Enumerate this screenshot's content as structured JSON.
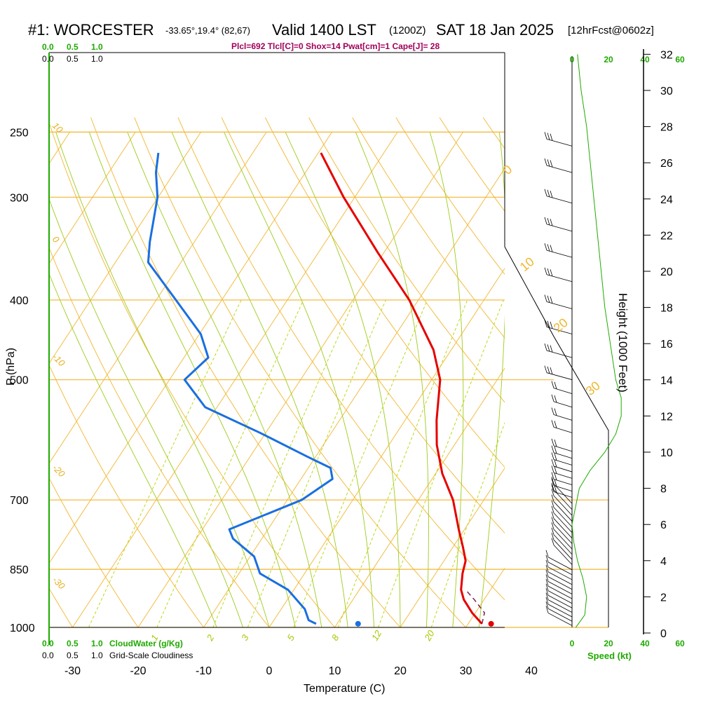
{
  "header": {
    "station": "#1: WORCESTER",
    "coords": "-33.65°,19.4° (82,67)",
    "valid": "Valid 1400 LST",
    "zulu": "(1200Z)",
    "date": "SAT 18 Jan 2025",
    "forecast": "[12hrFcst@0602z]"
  },
  "indices": "Plcl=692 Tlcl[C]=0 Shox=14 Pwat[cm]=1 Cape[J]= 28",
  "scales": {
    "cloudwater_ticks": [
      "0.0",
      "0.5",
      "1.0"
    ],
    "cloudiness_ticks": [
      "0.0",
      "0.5",
      "1.0"
    ],
    "cloudwater_label": "CloudWater (g/Kg)",
    "cloudiness_label": "Grid-Scale Cloudiness",
    "speed_ticks": [
      "0",
      "20",
      "40",
      "60"
    ],
    "speed_label": "Speed (kt)"
  },
  "colors": {
    "temperature": "#e60000",
    "dewpoint": "#1a6fe0",
    "isotherm": "#f2b630",
    "dry_adiabat": "#f2b630",
    "moist_adiabat": "#9ccc1a",
    "mixing_ratio": "#b8d400",
    "parcel": "#7a1f55",
    "wind_speed": "#1faa00"
  },
  "chart_data": {
    "type": "line",
    "subtype": "skew-t log-p sounding",
    "xlabel": "Temperature (C)",
    "ylabel": "P (hPa)",
    "y2label": "Height (1000 Feet)",
    "x_ticks": [
      -30,
      -20,
      -10,
      0,
      10,
      20,
      30,
      40
    ],
    "pressure_ticks": [
      250,
      300,
      400,
      500,
      700,
      850,
      1000
    ],
    "height_ticks": [
      0,
      2,
      4,
      6,
      8,
      10,
      12,
      14,
      16,
      18,
      20,
      22,
      24,
      26,
      28,
      30,
      32
    ],
    "mixing_ratio_labels": [
      "1",
      "2",
      "3",
      "5",
      "8",
      "12",
      "20"
    ],
    "dry_adiabat_labels": [
      "10",
      "0",
      "-10",
      "-20",
      "-30"
    ],
    "moist_adiabat_labels": [
      "0",
      "10",
      "20",
      "30"
    ],
    "temperature": [
      {
        "p": 990,
        "t": 32.1
      },
      {
        "p": 960,
        "t": 29.5
      },
      {
        "p": 925,
        "t": 26.9
      },
      {
        "p": 900,
        "t": 25.5
      },
      {
        "p": 860,
        "t": 24.1
      },
      {
        "p": 830,
        "t": 23.3
      },
      {
        "p": 800,
        "t": 21.6
      },
      {
        "p": 760,
        "t": 19.1
      },
      {
        "p": 700,
        "t": 15.3
      },
      {
        "p": 650,
        "t": 11.0
      },
      {
        "p": 600,
        "t": 7.3
      },
      {
        "p": 560,
        "t": 4.8
      },
      {
        "p": 500,
        "t": 1.3
      },
      {
        "p": 460,
        "t": -2.7
      },
      {
        "p": 400,
        "t": -11.4
      },
      {
        "p": 350,
        "t": -21.0
      },
      {
        "p": 300,
        "t": -31.7
      },
      {
        "p": 265,
        "t": -39.6
      }
    ],
    "dewpoint": [
      {
        "p": 990,
        "t": 6.8
      },
      {
        "p": 980,
        "t": 5.3
      },
      {
        "p": 950,
        "t": 3.6
      },
      {
        "p": 900,
        "t": -0.9
      },
      {
        "p": 860,
        "t": -6.8
      },
      {
        "p": 820,
        "t": -9.4
      },
      {
        "p": 780,
        "t": -14.4
      },
      {
        "p": 760,
        "t": -15.9
      },
      {
        "p": 700,
        "t": -7.8
      },
      {
        "p": 660,
        "t": -5.2
      },
      {
        "p": 640,
        "t": -6.6
      },
      {
        "p": 620,
        "t": -11.3
      },
      {
        "p": 580,
        "t": -20.9
      },
      {
        "p": 540,
        "t": -31.8
      },
      {
        "p": 500,
        "t": -37.7
      },
      {
        "p": 470,
        "t": -36.3
      },
      {
        "p": 440,
        "t": -39.8
      },
      {
        "p": 400,
        "t": -47.0
      },
      {
        "p": 360,
        "t": -55.0
      },
      {
        "p": 340,
        "t": -56.8
      },
      {
        "p": 300,
        "t": -60.1
      },
      {
        "p": 280,
        "t": -62.8
      },
      {
        "p": 265,
        "t": -64.4
      }
    ],
    "parcel_path": [
      {
        "p": 990,
        "t": 32.1
      },
      {
        "p": 960,
        "t": 31.4
      },
      {
        "p": 925,
        "t": 28.5
      },
      {
        "p": 900,
        "t": 26.2
      }
    ],
    "surface_temperature": {
      "p": 990,
      "t": 33.5
    },
    "surface_dewpoint": {
      "p": 990,
      "t": 13.2
    },
    "wind_speed_profile": [
      {
        "h": 0.3,
        "kt": 2
      },
      {
        "h": 1,
        "kt": 7
      },
      {
        "h": 2,
        "kt": 8
      },
      {
        "h": 3,
        "kt": 6
      },
      {
        "h": 4,
        "kt": 3
      },
      {
        "h": 5,
        "kt": 1
      },
      {
        "h": 6,
        "kt": 0
      },
      {
        "h": 7,
        "kt": 2
      },
      {
        "h": 8,
        "kt": 4
      },
      {
        "h": 9,
        "kt": 10
      },
      {
        "h": 10,
        "kt": 18
      },
      {
        "h": 11,
        "kt": 24
      },
      {
        "h": 12,
        "kt": 27
      },
      {
        "h": 13,
        "kt": 27
      },
      {
        "h": 14,
        "kt": 24
      },
      {
        "h": 16,
        "kt": 21
      },
      {
        "h": 18,
        "kt": 18
      },
      {
        "h": 20,
        "kt": 16
      },
      {
        "h": 22,
        "kt": 14
      },
      {
        "h": 24,
        "kt": 12
      },
      {
        "h": 26,
        "kt": 10
      },
      {
        "h": 28,
        "kt": 8
      },
      {
        "h": 30,
        "kt": 5
      },
      {
        "h": 32,
        "kt": 3
      }
    ]
  }
}
